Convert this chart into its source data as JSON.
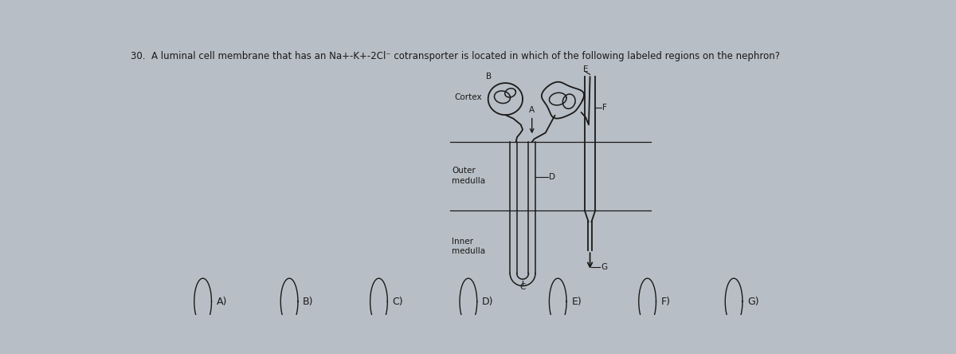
{
  "title_num": "30.",
  "title_text": "  A luminal cell membrane that has an Na+-K+-2Cl⁻ cotransporter is located in which of the following labeled regions on the nephron?",
  "background_color": "#b8bec5",
  "line_color": "#1a1a1a",
  "text_color": "#1a1a1a",
  "answer_options": [
    "A)",
    "B)",
    "C)",
    "D)",
    "E)",
    "F)",
    "G)"
  ],
  "fig_width": 12.0,
  "fig_height": 4.44,
  "cortex_label": "Cortex",
  "outer_med_label": "Outer\nmedulla",
  "inner_med_label": "Inner\nmedulla"
}
